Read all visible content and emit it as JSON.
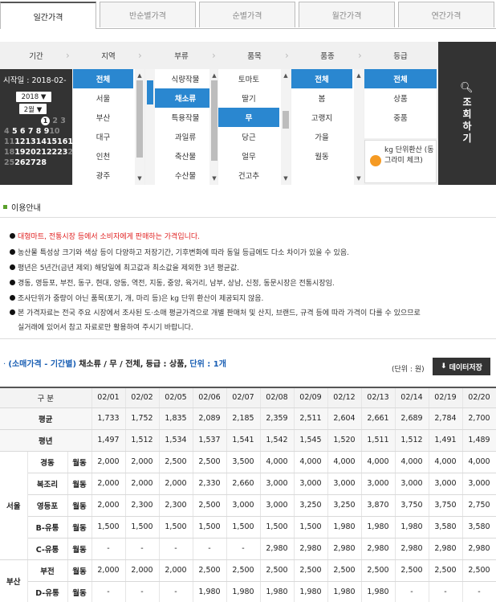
{
  "tabs": [
    "일간가격",
    "반순별가격",
    "순별가격",
    "월간가격",
    "연간가격"
  ],
  "filter": {
    "headers": [
      "기간",
      "지역",
      "부류",
      "품목",
      "품종",
      "등급"
    ],
    "start_label": "시작일 : 2018-02-",
    "year": "2018 ▼",
    "month": "2월 ▼",
    "calendar": {
      "row1": [
        "1",
        "2",
        "3"
      ],
      "row2": [
        "4",
        "5",
        "6",
        "7",
        "8",
        "9",
        "10"
      ],
      "row3": [
        "11",
        "12",
        "13",
        "14",
        "15",
        "16",
        "17"
      ],
      "row4": [
        "18",
        "19",
        "20",
        "21",
        "22",
        "23",
        "24"
      ],
      "row5": [
        "25",
        "26",
        "27",
        "28"
      ]
    },
    "regions": [
      "전체",
      "서울",
      "부산",
      "대구",
      "인천",
      "광주"
    ],
    "categories": [
      "식량작물",
      "채소류",
      "특용작물",
      "과일류",
      "축산물",
      "수산물"
    ],
    "items": [
      "토마토",
      "딸기",
      "무",
      "당근",
      "얼무",
      "건고추"
    ],
    "varieties": [
      "전체",
      "봄",
      "고랭지",
      "가을",
      "월동"
    ],
    "grades": [
      "전체",
      "상품",
      "중품"
    ],
    "kg_text": "kg 단위환산 (동그라미 체크)",
    "search_label": "조회하기"
  },
  "notice": {
    "title": "이용안내",
    "lines": [
      "대형마트, 전통시장 등에서 소비자에게 판매하는 가격입니다.",
      "농산물 특성상 크기와 색상 등이 다양하고 저장기간, 기후변화에 따라 동일 등급에도 다소 차이가 있을 수 있음.",
      "평년은 5년간(금년 제외) 해당일에 최고값과 최소값을 제외한 3년 평균값.",
      "경동, 영등포, 부전, 동구, 현대, 양동, 역전, 지동, 중앙, 육거리, 남부, 상남, 신정, 동문시장은 전통시장임.",
      "조사단위가 중량이 아닌 품목(포기, 개, 마리 등)은 kg 단위 환산이 제공되지 않음.",
      "본 가격자료는 전국 주요 시장에서 조사된 도·소매 평균가격으로 개별 판매처 및 산지, 브랜드, 규격 등에 따라 가격이 다를 수 있으므로",
      "실거래에 있어서 참고 자료로만 활용하여 주시기 바랍니다."
    ]
  },
  "summary": {
    "prefix": "(소매가격 - 기간별)",
    "path": "채소류 / 무 / 전체,",
    "grade": "등급 : 상품,",
    "unit_text": "단위 : 1개",
    "unit_label": "(단위 : 원)",
    "save_label": "데이터저장"
  },
  "table": {
    "header_label": "구 분",
    "dates": [
      "02/01",
      "02/02",
      "02/05",
      "02/06",
      "02/07",
      "02/08",
      "02/09",
      "02/12",
      "02/13",
      "02/14",
      "02/19",
      "02/20"
    ],
    "avg": {
      "label": "평균",
      "values": [
        "1,733",
        "1,752",
        "1,835",
        "2,089",
        "2,185",
        "2,359",
        "2,511",
        "2,604",
        "2,661",
        "2,689",
        "2,784",
        "2,700"
      ]
    },
    "normal": {
      "label": "평년",
      "values": [
        "1,497",
        "1,512",
        "1,534",
        "1,537",
        "1,541",
        "1,542",
        "1,545",
        "1,520",
        "1,511",
        "1,512",
        "1,491",
        "1,489"
      ]
    },
    "regions": [
      {
        "name": "서울",
        "markets": [
          {
            "market": "경동",
            "variety": "월동",
            "values": [
              "2,000",
              "2,000",
              "2,500",
              "2,500",
              "3,500",
              "4,000",
              "4,000",
              "4,000",
              "4,000",
              "4,000",
              "4,000",
              "4,000"
            ]
          },
          {
            "market": "복조리",
            "variety": "월동",
            "values": [
              "2,000",
              "2,000",
              "2,000",
              "2,330",
              "2,660",
              "3,000",
              "3,000",
              "3,000",
              "3,000",
              "3,000",
              "3,000",
              "3,000"
            ]
          },
          {
            "market": "영등포",
            "variety": "월동",
            "values": [
              "2,000",
              "2,300",
              "2,300",
              "2,500",
              "3,000",
              "3,000",
              "3,250",
              "3,250",
              "3,870",
              "3,750",
              "3,750",
              "2,750"
            ]
          },
          {
            "market": "B-유통",
            "variety": "월동",
            "values": [
              "1,500",
              "1,500",
              "1,500",
              "1,500",
              "1,500",
              "1,500",
              "1,500",
              "1,980",
              "1,980",
              "1,980",
              "3,580",
              "3,580"
            ]
          },
          {
            "market": "C-유통",
            "variety": "월동",
            "values": [
              "-",
              "-",
              "-",
              "-",
              "-",
              "2,980",
              "2,980",
              "2,980",
              "2,980",
              "2,980",
              "2,980",
              "2,980"
            ]
          }
        ]
      },
      {
        "name": "부산",
        "markets": [
          {
            "market": "부전",
            "variety": "월동",
            "values": [
              "2,000",
              "2,000",
              "2,000",
              "2,500",
              "2,500",
              "2,500",
              "2,500",
              "2,500",
              "2,500",
              "2,500",
              "2,500",
              "2,500"
            ]
          },
          {
            "market": "D-유통",
            "variety": "월동",
            "values": [
              "-",
              "-",
              "-",
              "1,980",
              "1,980",
              "1,980",
              "1,980",
              "1,980",
              "1,980",
              "-",
              "-",
              "-"
            ]
          }
        ]
      }
    ]
  },
  "colors": {
    "accent_blue": "#2a87d0",
    "dark_panel": "#333333",
    "red_notice": "#e02020",
    "orange_dot": "#f59a23"
  }
}
